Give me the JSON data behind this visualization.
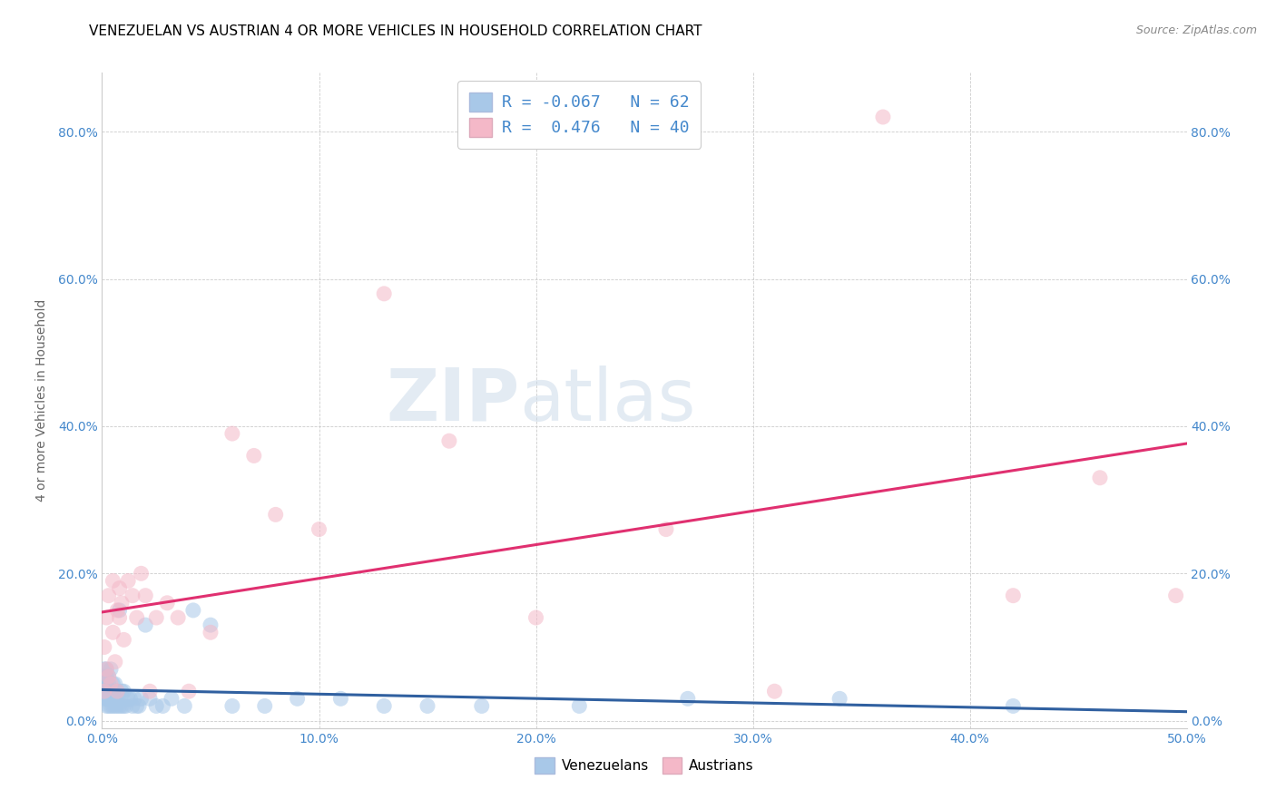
{
  "title": "VENEZUELAN VS AUSTRIAN 4 OR MORE VEHICLES IN HOUSEHOLD CORRELATION CHART",
  "source": "Source: ZipAtlas.com",
  "ylabel_label": "4 or more Vehicles in Household",
  "legend_labels": [
    "Venezuelans",
    "Austrians"
  ],
  "legend_R": [
    -0.067,
    0.476
  ],
  "legend_N": [
    62,
    40
  ],
  "blue_color": "#a8c8e8",
  "pink_color": "#f4b8c8",
  "blue_line_color": "#3060a0",
  "pink_line_color": "#e03070",
  "watermark_zip": "ZIP",
  "watermark_atlas": "atlas",
  "xlim": [
    0.0,
    0.5
  ],
  "ylim": [
    -0.01,
    0.88
  ],
  "x_tick_vals": [
    0.0,
    0.1,
    0.2,
    0.3,
    0.4,
    0.5
  ],
  "y_tick_vals": [
    0.0,
    0.2,
    0.4,
    0.6,
    0.8
  ],
  "venezuelan_x": [
    0.001,
    0.001,
    0.001,
    0.001,
    0.001,
    0.002,
    0.002,
    0.002,
    0.002,
    0.002,
    0.002,
    0.003,
    0.003,
    0.003,
    0.003,
    0.003,
    0.004,
    0.004,
    0.004,
    0.004,
    0.005,
    0.005,
    0.005,
    0.005,
    0.006,
    0.006,
    0.006,
    0.007,
    0.007,
    0.008,
    0.008,
    0.009,
    0.009,
    0.01,
    0.01,
    0.011,
    0.012,
    0.013,
    0.014,
    0.015,
    0.016,
    0.017,
    0.018,
    0.02,
    0.022,
    0.025,
    0.028,
    0.032,
    0.038,
    0.042,
    0.05,
    0.06,
    0.075,
    0.09,
    0.11,
    0.13,
    0.15,
    0.175,
    0.22,
    0.27,
    0.34,
    0.42
  ],
  "venezuelan_y": [
    0.03,
    0.04,
    0.05,
    0.06,
    0.07,
    0.02,
    0.03,
    0.04,
    0.05,
    0.06,
    0.07,
    0.02,
    0.03,
    0.04,
    0.05,
    0.06,
    0.02,
    0.03,
    0.04,
    0.07,
    0.02,
    0.03,
    0.04,
    0.05,
    0.02,
    0.03,
    0.05,
    0.02,
    0.04,
    0.02,
    0.15,
    0.02,
    0.04,
    0.02,
    0.04,
    0.02,
    0.03,
    0.03,
    0.02,
    0.03,
    0.02,
    0.02,
    0.03,
    0.13,
    0.03,
    0.02,
    0.02,
    0.03,
    0.02,
    0.15,
    0.13,
    0.02,
    0.02,
    0.03,
    0.03,
    0.02,
    0.02,
    0.02,
    0.02,
    0.03,
    0.03,
    0.02
  ],
  "austrian_x": [
    0.001,
    0.001,
    0.002,
    0.002,
    0.003,
    0.003,
    0.004,
    0.005,
    0.005,
    0.006,
    0.007,
    0.007,
    0.008,
    0.008,
    0.009,
    0.01,
    0.012,
    0.014,
    0.016,
    0.018,
    0.02,
    0.022,
    0.025,
    0.03,
    0.035,
    0.04,
    0.05,
    0.06,
    0.07,
    0.08,
    0.1,
    0.13,
    0.16,
    0.2,
    0.26,
    0.31,
    0.36,
    0.42,
    0.46,
    0.495
  ],
  "austrian_y": [
    0.04,
    0.1,
    0.07,
    0.14,
    0.06,
    0.17,
    0.05,
    0.12,
    0.19,
    0.08,
    0.15,
    0.04,
    0.14,
    0.18,
    0.16,
    0.11,
    0.19,
    0.17,
    0.14,
    0.2,
    0.17,
    0.04,
    0.14,
    0.16,
    0.14,
    0.04,
    0.12,
    0.39,
    0.36,
    0.28,
    0.26,
    0.58,
    0.38,
    0.14,
    0.26,
    0.04,
    0.82,
    0.17,
    0.33,
    0.17
  ],
  "title_fontsize": 11,
  "axis_label_fontsize": 10,
  "tick_fontsize": 10,
  "source_fontsize": 9
}
